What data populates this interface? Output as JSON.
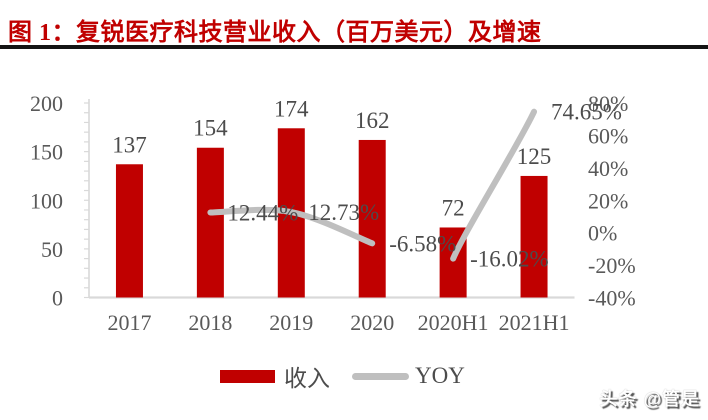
{
  "title": "图 1：复锐医疗科技营业收入（百万美元）及增速",
  "legend": {
    "revenue": "收入",
    "yoy": "YOY"
  },
  "watermark": "头条 @管是",
  "colors": {
    "bar": "#c00000",
    "line": "#bfbfbf",
    "title": "#c00000",
    "axis": "#d9d9d9",
    "tick_text": "#595959",
    "data_label": "#4c4c4c",
    "divider": "#141414"
  },
  "chart_data": {
    "type": "bar+line",
    "title": "复锐医疗科技营业收入（百万美元）及增速",
    "categories": [
      "2017",
      "2018",
      "2019",
      "2020",
      "2020H1",
      "2021H1"
    ],
    "series": [
      {
        "name": "收入",
        "type": "bar",
        "axis": "left",
        "values": [
          137,
          154,
          174,
          162,
          72,
          125
        ],
        "value_labels": [
          "137",
          "154",
          "174",
          "162",
          "72",
          "125"
        ]
      },
      {
        "name": "YOY",
        "type": "line",
        "axis": "right",
        "values": [
          null,
          12.44,
          12.73,
          -6.58,
          -16.02,
          74.65
        ],
        "value_labels": [
          "",
          "12.44%",
          "12.73%",
          "-6.58%",
          "-16.02%",
          "74.65%"
        ],
        "segments": [
          [
            1,
            2,
            3
          ],
          [
            4,
            5
          ]
        ]
      }
    ],
    "left_axis": {
      "min": 0,
      "max": 200,
      "tick_step": 50,
      "minor_tick_step": 10,
      "tick_labels": [
        "0",
        "50",
        "100",
        "150",
        "200"
      ]
    },
    "right_axis": {
      "min": -40,
      "max": 80,
      "tick_step": 20,
      "tick_labels": [
        "-40%",
        "-20%",
        "0%",
        "20%",
        "40%",
        "60%",
        "80%"
      ]
    },
    "gridlines": false,
    "legend_position": "bottom"
  }
}
